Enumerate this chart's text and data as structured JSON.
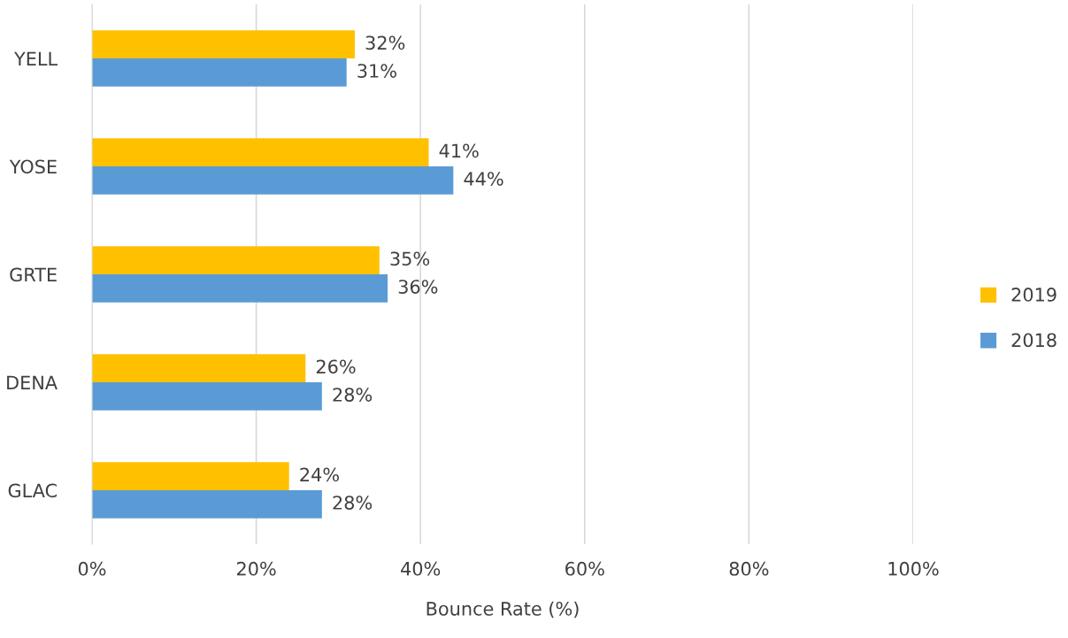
{
  "chart_data": {
    "type": "bar",
    "orientation": "horizontal",
    "xlabel": "Bounce Rate (%)",
    "categories": [
      "YELL",
      "YOSE",
      "GRTE",
      "DENA",
      "GLAC"
    ],
    "series": [
      {
        "name": "2019",
        "color": "#ffc000",
        "values": [
          32,
          41,
          35,
          26,
          24
        ],
        "value_labels": [
          "32%",
          "41%",
          "35%",
          "26%",
          "24%"
        ]
      },
      {
        "name": "2018",
        "color": "#5b9bd5",
        "values": [
          31,
          44,
          36,
          28,
          28
        ],
        "value_labels": [
          "31%",
          "44%",
          "36%",
          "28%",
          "28%"
        ]
      }
    ],
    "xlim": [
      0,
      100
    ],
    "xticks": [
      {
        "value": 0,
        "label": "0%"
      },
      {
        "value": 20,
        "label": "20%"
      },
      {
        "value": 40,
        "label": "40%"
      },
      {
        "value": 60,
        "label": "60%"
      },
      {
        "value": 80,
        "label": "80%"
      },
      {
        "value": 100,
        "label": "100%"
      }
    ],
    "grid": "x",
    "legend": "right"
  }
}
